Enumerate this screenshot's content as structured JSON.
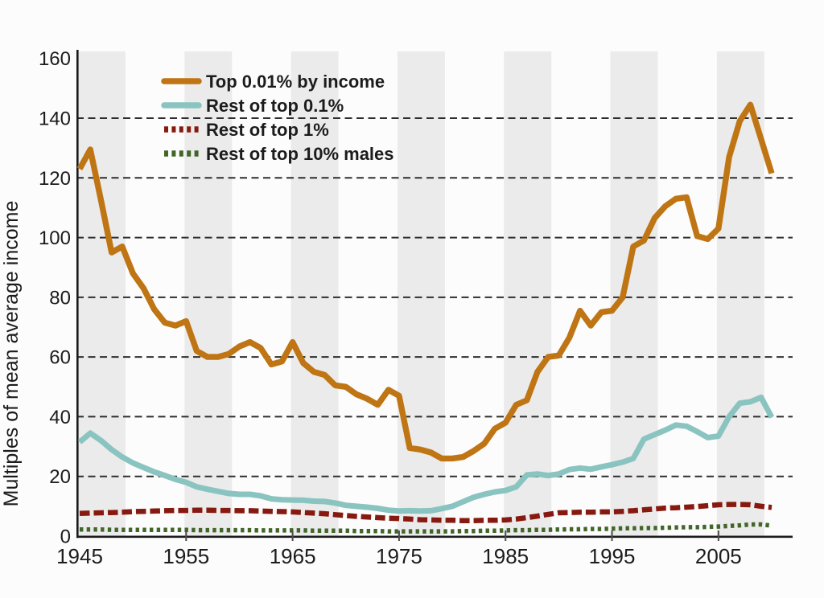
{
  "chart_data": {
    "type": "line",
    "title": "",
    "xlabel": "",
    "ylabel": "Multiples of mean average income",
    "x_range": [
      1945,
      2010
    ],
    "x_step_years": 1,
    "ylim": [
      0,
      160
    ],
    "yticks": [
      0,
      20,
      40,
      60,
      80,
      100,
      120,
      140,
      160
    ],
    "xtick_labels": [
      "1945",
      "1955",
      "1965",
      "1975",
      "1985",
      "1995",
      "2005"
    ],
    "xtick_label_years": [
      1945,
      1955,
      1965,
      1975,
      1985,
      1995,
      2005
    ],
    "tick_mark_years": [
      1955,
      1965,
      1975,
      1985,
      1995,
      2005
    ],
    "shaded_decade_bands": [
      1945,
      1955,
      1965,
      1975,
      1985,
      1995,
      2005
    ],
    "grid": "horizontal-dashed",
    "legend_position": "top-left-inside",
    "colors": {
      "background": "#fcfcfc",
      "band": "#ebebeb",
      "gridline": "#2e2e2e",
      "axis": "#1b1b1b",
      "tick": "#4d4d4d",
      "text": "#1c1c1c",
      "orange": "#bf7513",
      "teal": "#8ac4c0",
      "dark_red": "#871a10",
      "dark_green": "#42662a"
    },
    "series": [
      {
        "name": "Top 0.01% by income",
        "color": "#bf7513",
        "line_style": "solid",
        "stroke_width": 7.4,
        "values": [
          123,
          129.5,
          112.5,
          95,
          97,
          88,
          83,
          76,
          71.5,
          70.5,
          72,
          62,
          60,
          60,
          61,
          63.5,
          65,
          63,
          57.5,
          58.5,
          65,
          58,
          55,
          54,
          50.5,
          50,
          47.5,
          46,
          44,
          49,
          47,
          29.5,
          29,
          28,
          26,
          26,
          26.5,
          28.5,
          31,
          36,
          38,
          44,
          45.5,
          55,
          60,
          60.5,
          66.5,
          75.5,
          70.5,
          75,
          75.5,
          80,
          97,
          99,
          106.5,
          110.5,
          113,
          113.5,
          100.5,
          99.5,
          103,
          127,
          139,
          144.5,
          133,
          121.5
        ]
      },
      {
        "name": "Rest of top 0.1%",
        "color": "#8ac4c0",
        "line_style": "solid",
        "stroke_width": 7,
        "values": [
          31.5,
          34.5,
          32,
          29,
          26.5,
          24.5,
          23,
          21.5,
          20.3,
          19,
          18,
          16.5,
          15.7,
          15,
          14.3,
          14,
          14,
          13.5,
          12.5,
          12.2,
          12.1,
          12,
          11.7,
          11.6,
          11.1,
          10.3,
          10,
          9.7,
          9.3,
          8.7,
          8.4,
          8.5,
          8.4,
          8.5,
          9.2,
          10,
          11.5,
          13,
          14,
          14.8,
          15.3,
          16.5,
          20.5,
          20.8,
          20.3,
          20.8,
          22.3,
          22.8,
          22.4,
          23.2,
          23.9,
          24.8,
          26,
          32.5,
          34,
          35.5,
          37.2,
          36.8,
          35,
          33,
          33.5,
          40,
          44.5,
          45,
          46.5,
          39.8
        ]
      },
      {
        "name": "Rest of top 1%",
        "color": "#871a10",
        "line_style": "dashed",
        "stroke_width": 6.5,
        "values": [
          7.6,
          7.7,
          7.8,
          7.9,
          8,
          8.2,
          8.3,
          8.4,
          8.5,
          8.6,
          8.6,
          8.7,
          8.7,
          8.6,
          8.6,
          8.5,
          8.5,
          8.4,
          8.3,
          8.2,
          8.1,
          7.9,
          7.7,
          7.5,
          7.2,
          6.9,
          6.6,
          6.4,
          6.2,
          6,
          5.9,
          5.7,
          5.5,
          5.4,
          5.3,
          5.3,
          5.2,
          5.2,
          5.3,
          5.3,
          5.4,
          5.7,
          6.2,
          6.7,
          7.3,
          7.8,
          7.9,
          8,
          8,
          8.1,
          8.1,
          8.3,
          8.5,
          8.8,
          9.1,
          9.4,
          9.5,
          9.7,
          9.9,
          10.2,
          10.5,
          10.6,
          10.6,
          10.5,
          10,
          9.6
        ]
      },
      {
        "name": "Rest of top 10% males",
        "color": "#42662a",
        "line_style": "dotted",
        "stroke_width": 5.5,
        "values": [
          2.2,
          2.2,
          2.2,
          2.1,
          2.1,
          2.1,
          2.1,
          2.1,
          2.1,
          2.1,
          2.1,
          2,
          2,
          2,
          2,
          2,
          2,
          1.9,
          1.9,
          1.9,
          1.9,
          1.9,
          1.8,
          1.8,
          1.8,
          1.8,
          1.7,
          1.7,
          1.7,
          1.6,
          1.6,
          1.6,
          1.6,
          1.6,
          1.6,
          1.6,
          1.7,
          1.7,
          1.8,
          1.8,
          1.9,
          2,
          2,
          2.1,
          2.1,
          2.2,
          2.3,
          2.3,
          2.4,
          2.4,
          2.5,
          2.6,
          2.6,
          2.7,
          2.7,
          2.8,
          2.9,
          3,
          3,
          3.1,
          3.2,
          3.4,
          3.6,
          3.9,
          3.9,
          3.5
        ]
      }
    ]
  }
}
